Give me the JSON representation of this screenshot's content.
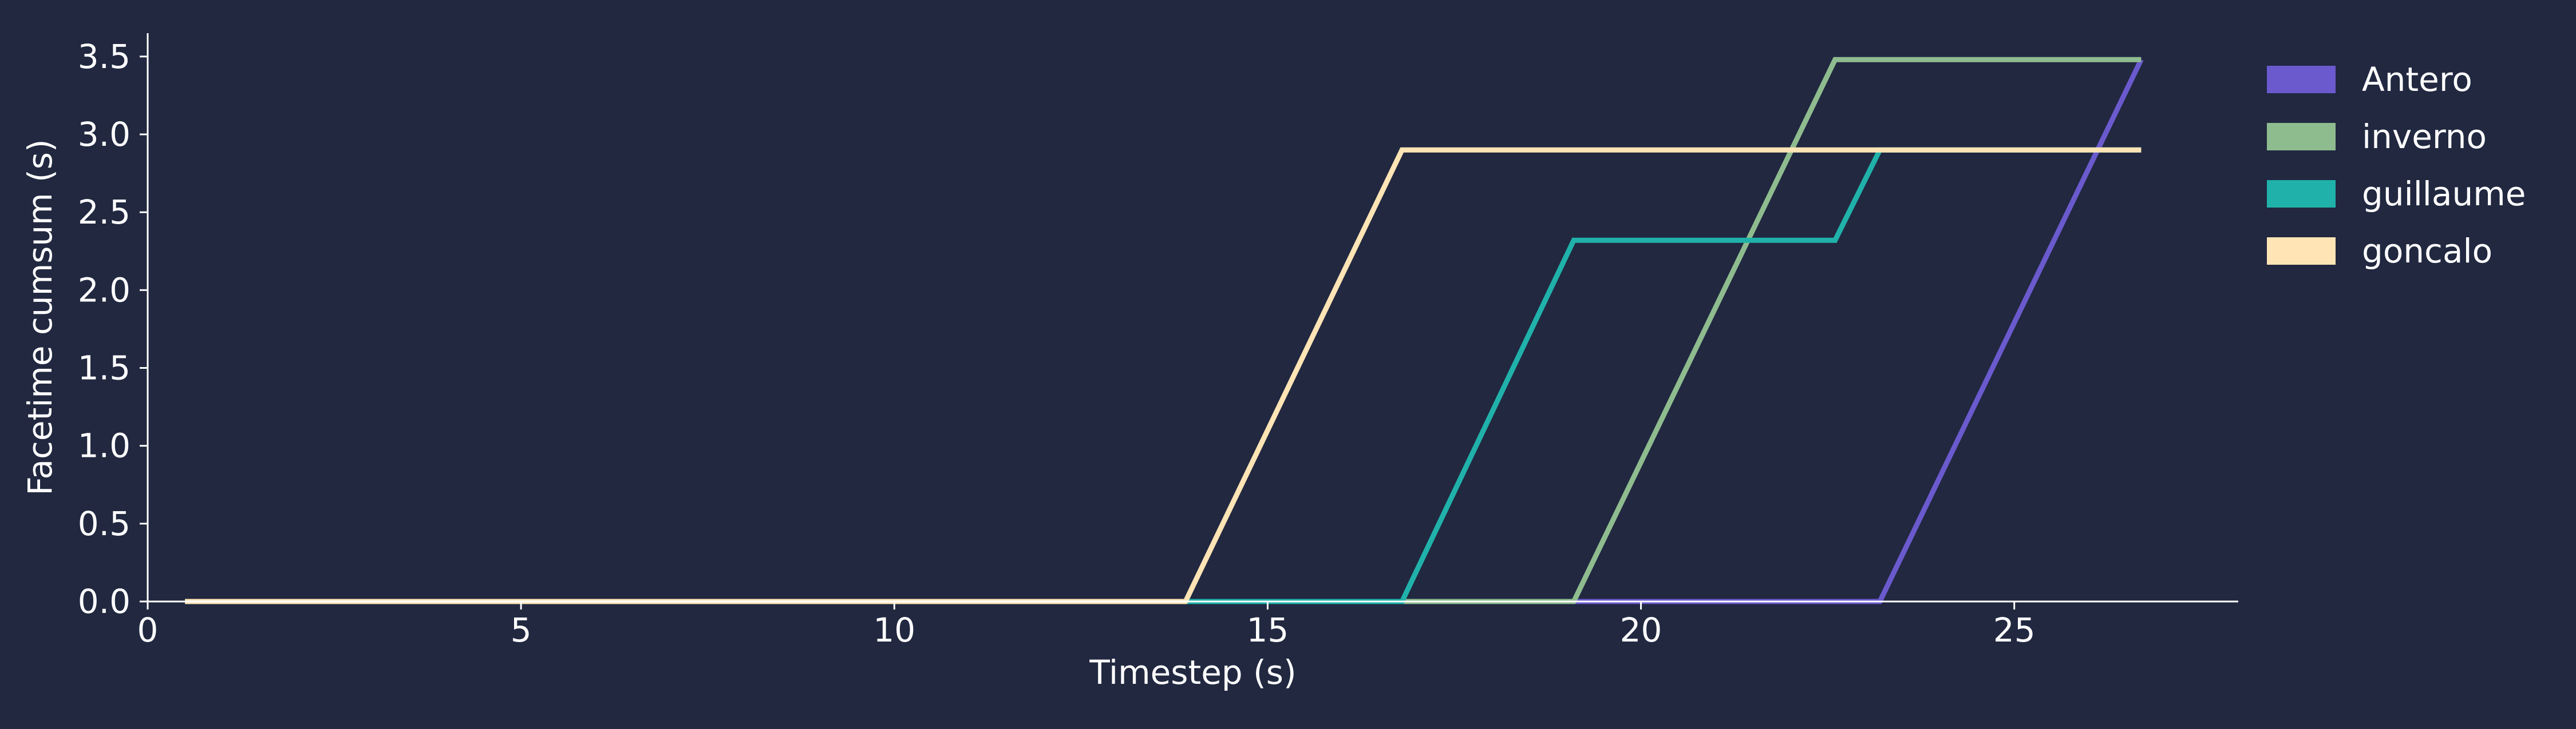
{
  "chart_data": {
    "type": "line",
    "title": "",
    "xlabel": "Timestep (s)",
    "ylabel": "Facetime cumsum (s)",
    "xlim": [
      0,
      28
    ],
    "ylim": [
      0,
      3.65
    ],
    "xticks": [
      0,
      5,
      10,
      15,
      20,
      25
    ],
    "yticks": [
      0.0,
      0.5,
      1.0,
      1.5,
      2.0,
      2.5,
      3.0,
      3.5
    ],
    "xtick_labels": [
      "0",
      "5",
      "10",
      "15",
      "20",
      "25"
    ],
    "ytick_labels": [
      "0.0",
      "0.5",
      "1.0",
      "1.5",
      "2.0",
      "2.5",
      "3.0",
      "3.5"
    ],
    "grid": false,
    "legend_position": "top-right, outside plot",
    "background_color": "#212840",
    "series": [
      {
        "name": "Antero",
        "color": "#6a5acd",
        "x": [
          0.5,
          23.2,
          26.7
        ],
        "y": [
          0.0,
          0.0,
          3.48
        ]
      },
      {
        "name": "inverno",
        "color": "#8fbc8f",
        "x": [
          0.5,
          19.1,
          22.6,
          26.7
        ],
        "y": [
          0.0,
          0.0,
          3.48,
          3.48
        ]
      },
      {
        "name": "guillaume",
        "color": "#20b2aa",
        "x": [
          0.5,
          16.8,
          19.1,
          22.6,
          23.2,
          26.7
        ],
        "y": [
          0.0,
          0.0,
          2.32,
          2.32,
          2.9,
          2.9
        ]
      },
      {
        "name": "goncalo",
        "color": "#ffe4b5",
        "x": [
          0.5,
          13.9,
          16.8,
          26.7
        ],
        "y": [
          0.0,
          0.0,
          2.9,
          2.9
        ]
      }
    ]
  }
}
